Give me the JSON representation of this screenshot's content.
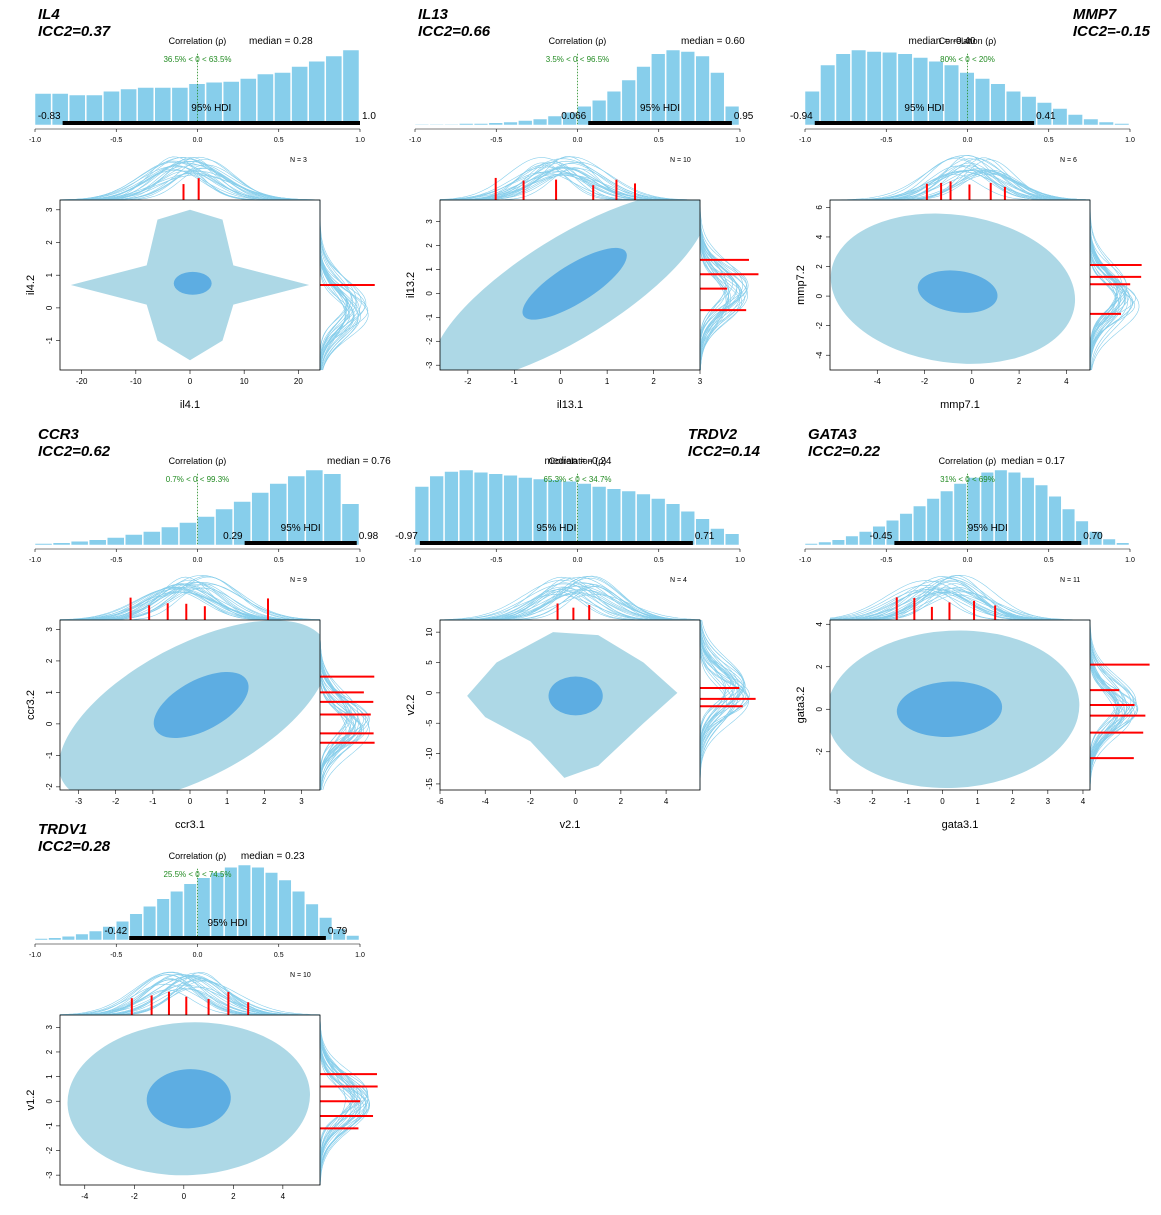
{
  "colors": {
    "bar": "#87ceeb",
    "outer": "#add8e6",
    "inner": "#5dade2",
    "curve": "#87ceeb",
    "tick": "#ff0000",
    "prob": "#228b22"
  },
  "chart_data": [
    {
      "type": "bar",
      "gene": "IL4",
      "icc": "ICC2=0.37",
      "title": "Correlation (ρ)",
      "median": "median = 0.28",
      "median_value": 0.28,
      "prob": "36.5% < 0 < 63.5%",
      "hdi_label": "95% HDI",
      "hdi": [
        -0.83,
        1.0
      ],
      "hdi_text": [
        "-0.83",
        "1.0"
      ],
      "n": "N = 3",
      "xticks": [
        "-1.0",
        "-0.5",
        "0.0",
        "0.5",
        "1.0"
      ],
      "hist": [
        0.42,
        0.42,
        0.4,
        0.4,
        0.45,
        0.48,
        0.5,
        0.5,
        0.5,
        0.55,
        0.57,
        0.58,
        0.62,
        0.68,
        0.7,
        0.78,
        0.85,
        0.92,
        1.0
      ],
      "xlabel": "il4.1",
      "ylabel": "il4.2",
      "xticks2": [
        "-20",
        "-10",
        "0",
        "10",
        "20"
      ],
      "yticks2": [
        "-1",
        "0",
        "1",
        "2",
        "3"
      ],
      "xlim": [
        -24,
        24
      ],
      "ylim": [
        -1.9,
        3.3
      ],
      "shape": "diamond",
      "inner": [
        0.5,
        0.75,
        3.5,
        0.35
      ],
      "rugx": [
        -1.2,
        1.6
      ],
      "rugy": [
        0.7
      ]
    },
    {
      "type": "bar",
      "gene": "IL13",
      "icc": "ICC2=0.66",
      "title": "Correlation (ρ)",
      "median": "median = 0.60",
      "median_value": 0.6,
      "prob": "3.5% < 0 < 96.5%",
      "hdi_label": "95% HDI",
      "hdi": [
        0.066,
        0.95
      ],
      "hdi_text": [
        "0.066",
        "0.95"
      ],
      "n": "N = 10",
      "xticks": [
        "-1.0",
        "-0.5",
        "0.0",
        "0.5",
        "1.0"
      ],
      "hist": [
        0.01,
        0.01,
        0.01,
        0.02,
        0.02,
        0.03,
        0.04,
        0.06,
        0.08,
        0.12,
        0.17,
        0.25,
        0.33,
        0.45,
        0.6,
        0.78,
        0.95,
        1.0,
        0.98,
        0.92,
        0.7,
        0.25
      ],
      "xlabel": "il13.1",
      "ylabel": "il13.2",
      "xticks2": [
        "-2",
        "-1",
        "0",
        "1",
        "2",
        "3"
      ],
      "yticks2": [
        "-3",
        "-2",
        "-1",
        "0",
        "1",
        "2",
        "3"
      ],
      "xlim": [
        -2.6,
        3.0
      ],
      "ylim": [
        -3.2,
        3.9
      ],
      "shape": "ellipse",
      "tilt": 32,
      "outer": [
        0.2,
        0.25,
        3.4,
        2.1
      ],
      "inner": [
        0.3,
        0.4,
        1.3,
        0.8
      ],
      "rugx": [
        -1.4,
        -0.8,
        -0.1,
        0.7,
        1.2,
        1.6
      ],
      "rugy": [
        1.4,
        0.8,
        0.2,
        -0.7
      ]
    },
    {
      "type": "bar",
      "gene": "MMP7",
      "icc": "ICC2=-0.15",
      "title": "Correlation (ρ)",
      "median": "median = -0.40",
      "median_value": -0.4,
      "prob": "80% < 0 < 20%",
      "hdi_label": "95% HDI",
      "hdi": [
        -0.94,
        0.41
      ],
      "hdi_text": [
        "-0.94",
        "0.41"
      ],
      "n": "N = 6",
      "xticks": [
        "-1.0",
        "-0.5",
        "0.0",
        "0.5",
        "1.0"
      ],
      "hist": [
        0.45,
        0.8,
        0.95,
        1.0,
        0.98,
        0.97,
        0.95,
        0.9,
        0.85,
        0.8,
        0.7,
        0.62,
        0.55,
        0.45,
        0.38,
        0.3,
        0.22,
        0.14,
        0.08,
        0.04,
        0.02
      ],
      "xlabel": "mmp7.1",
      "ylabel": "mmp7.2",
      "xticks2": [
        "-4",
        "-2",
        "0",
        "2",
        "4"
      ],
      "yticks2": [
        "-4",
        "-2",
        "0",
        "2",
        "4",
        "6"
      ],
      "xlim": [
        -6,
        5
      ],
      "ylim": [
        -5,
        6.5
      ],
      "shape": "ellipse",
      "tilt": -8,
      "outer": [
        -0.8,
        0.5,
        5.2,
        5.0
      ],
      "inner": [
        -0.6,
        0.3,
        1.7,
        1.4
      ],
      "rugx": [
        -1.9,
        -1.3,
        -0.9,
        -0.1,
        0.8,
        1.4
      ],
      "rugy": [
        2.1,
        1.3,
        0.8,
        -1.2
      ]
    },
    {
      "type": "bar",
      "gene": "CCR3",
      "icc": "ICC2=0.62",
      "title": "Correlation (ρ)",
      "median": "median = 0.76",
      "median_value": 0.76,
      "prob": "0.7% < 0 < 99.3%",
      "hdi_label": "95% HDI",
      "hdi": [
        0.29,
        0.98
      ],
      "hdi_text": [
        "0.29",
        "0.98"
      ],
      "n": "N = 9",
      "xticks": [
        "-1.0",
        "-0.5",
        "0.0",
        "0.5",
        "1.0"
      ],
      "hist": [
        0.02,
        0.03,
        0.05,
        0.07,
        0.1,
        0.14,
        0.18,
        0.24,
        0.3,
        0.38,
        0.48,
        0.58,
        0.7,
        0.82,
        0.92,
        1.0,
        0.95,
        0.55
      ],
      "xlabel": "ccr3.1",
      "ylabel": "ccr3.2",
      "xticks2": [
        "-3",
        "-2",
        "-1",
        "0",
        "1",
        "2",
        "3"
      ],
      "yticks2": [
        "-2",
        "-1",
        "0",
        "1",
        "2",
        "3"
      ],
      "xlim": [
        -3.5,
        3.5
      ],
      "ylim": [
        -2.1,
        3.3
      ],
      "shape": "ellipse",
      "tilt": 28,
      "outer": [
        0.1,
        0.4,
        4.0,
        2.1
      ],
      "inner": [
        0.3,
        0.6,
        1.4,
        0.8
      ],
      "rugx": [
        -1.6,
        -1.1,
        -0.6,
        -0.1,
        0.4,
        2.1
      ],
      "rugy": [
        1.5,
        1.0,
        0.7,
        0.3,
        -0.3,
        -0.6
      ]
    },
    {
      "type": "bar",
      "gene": "TRDV2",
      "icc": "ICC2=0.14",
      "title": "Correlation (ρ)",
      "median": "median = -0.24",
      "median_value": -0.24,
      "prob": "65.3% < 0 < 34.7%",
      "hdi_label": "95% HDI",
      "hdi": [
        -0.97,
        0.71
      ],
      "hdi_text": [
        "-0.97",
        "0.71"
      ],
      "n": "N = 4",
      "xticks": [
        "-1.0",
        "-0.5",
        "0.0",
        "0.5",
        "1.0"
      ],
      "hist": [
        0.78,
        0.92,
        0.98,
        1.0,
        0.97,
        0.95,
        0.93,
        0.9,
        0.88,
        0.87,
        0.85,
        0.82,
        0.78,
        0.75,
        0.72,
        0.68,
        0.62,
        0.55,
        0.45,
        0.35,
        0.22,
        0.15
      ],
      "xlabel": "v2.1",
      "ylabel": "v2.2",
      "xticks2": [
        "-6",
        "-4",
        "-2",
        "0",
        "2",
        "4"
      ],
      "yticks2": [
        "-15",
        "-10",
        "-5",
        "0",
        "5",
        "10"
      ],
      "xlim": [
        -6,
        5.5
      ],
      "ylim": [
        -16,
        12
      ],
      "shape": "blob",
      "inner": [
        0,
        -0.5,
        1.2,
        3.2
      ],
      "rugx": [
        -0.8,
        -0.1,
        0.6
      ],
      "rugy": [
        0.8,
        -1.0,
        -2.2
      ]
    },
    {
      "type": "bar",
      "gene": "GATA3",
      "icc": "ICC2=0.22",
      "title": "Correlation (ρ)",
      "median": "median = 0.17",
      "median_value": 0.17,
      "prob": "31% < 0 < 69%",
      "hdi_label": "95% HDI",
      "hdi": [
        -0.45,
        0.7
      ],
      "hdi_text": [
        "-0.45",
        "0.70"
      ],
      "n": "N = 11",
      "xticks": [
        "-1.0",
        "-0.5",
        "0.0",
        "0.5",
        "1.0"
      ],
      "hist": [
        0.02,
        0.04,
        0.07,
        0.12,
        0.18,
        0.25,
        0.33,
        0.42,
        0.52,
        0.62,
        0.72,
        0.82,
        0.9,
        0.97,
        1.0,
        0.97,
        0.9,
        0.8,
        0.65,
        0.48,
        0.32,
        0.18,
        0.08,
        0.03
      ],
      "xlabel": "gata3.1",
      "ylabel": "gata3.2",
      "xticks2": [
        "-3",
        "-2",
        "-1",
        "0",
        "1",
        "2",
        "3",
        "4"
      ],
      "yticks2": [
        "-2",
        "0",
        "2",
        "4"
      ],
      "xlim": [
        -3.2,
        4.2
      ],
      "ylim": [
        -3.8,
        4.2
      ],
      "shape": "ellipse",
      "tilt": 3,
      "outer": [
        0.3,
        0.0,
        3.6,
        3.7
      ],
      "inner": [
        0.2,
        0.0,
        1.5,
        1.3
      ],
      "rugx": [
        -1.3,
        -0.8,
        -0.3,
        0.2,
        0.9,
        1.5
      ],
      "rugy": [
        2.1,
        0.9,
        0.2,
        -0.3,
        -1.1,
        -2.3
      ]
    },
    {
      "type": "bar",
      "gene": "TRDV1",
      "icc": "ICC2=0.28",
      "title": "Correlation (ρ)",
      "median": "median = 0.23",
      "median_value": 0.23,
      "prob": "25.5% < 0 < 74.5%",
      "hdi_label": "95% HDI",
      "hdi": [
        -0.42,
        0.79
      ],
      "hdi_text": [
        "-0.42",
        "0.79"
      ],
      "n": "N = 10",
      "xticks": [
        "-1.0",
        "-0.5",
        "0.0",
        "0.5",
        "1.0"
      ],
      "hist": [
        0.02,
        0.03,
        0.05,
        0.08,
        0.12,
        0.18,
        0.25,
        0.35,
        0.45,
        0.55,
        0.65,
        0.75,
        0.83,
        0.9,
        0.97,
        1.0,
        0.97,
        0.9,
        0.8,
        0.65,
        0.48,
        0.3,
        0.15,
        0.06
      ],
      "xlabel": "v1.1",
      "ylabel": "v1.2",
      "xticks2": [
        "-4",
        "-2",
        "0",
        "2",
        "4"
      ],
      "yticks2": [
        "-3",
        "-2",
        "-1",
        "0",
        "1",
        "2",
        "3"
      ],
      "xlim": [
        -5,
        5.5
      ],
      "ylim": [
        -3.4,
        3.5
      ],
      "shape": "ellipse",
      "tilt": 3,
      "outer": [
        0.2,
        0.1,
        4.9,
        3.1
      ],
      "inner": [
        0.2,
        0.1,
        1.7,
        1.2
      ],
      "rugx": [
        -2.1,
        -1.3,
        -0.6,
        0.1,
        1.0,
        1.8,
        2.6
      ],
      "rugy": [
        1.1,
        0.6,
        0.0,
        -0.6,
        -1.1
      ]
    }
  ]
}
